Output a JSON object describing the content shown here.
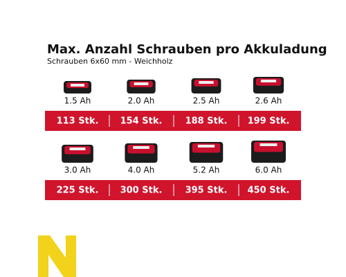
{
  "header": {
    "title": "Max. Anzahl Schrauben pro Akkuladung",
    "subtitle": "Schrauben 6x60 mm - Weichholz"
  },
  "rows": [
    [
      {
        "capacity": "1.5 Ah",
        "count": "113 Stk."
      },
      {
        "capacity": "2.0 Ah",
        "count": "154 Stk."
      },
      {
        "capacity": "2.5 Ah",
        "count": "188 Stk."
      },
      {
        "capacity": "2.6 Ah",
        "count": "199 Stk."
      }
    ],
    [
      {
        "capacity": "3.0 Ah",
        "count": "225 Stk."
      },
      {
        "capacity": "4.0 Ah",
        "count": "300 Stk."
      },
      {
        "capacity": "5.2 Ah",
        "count": "395 Stk."
      },
      {
        "capacity": "6.0 Ah",
        "count": "450 Stk."
      }
    ]
  ]
}
